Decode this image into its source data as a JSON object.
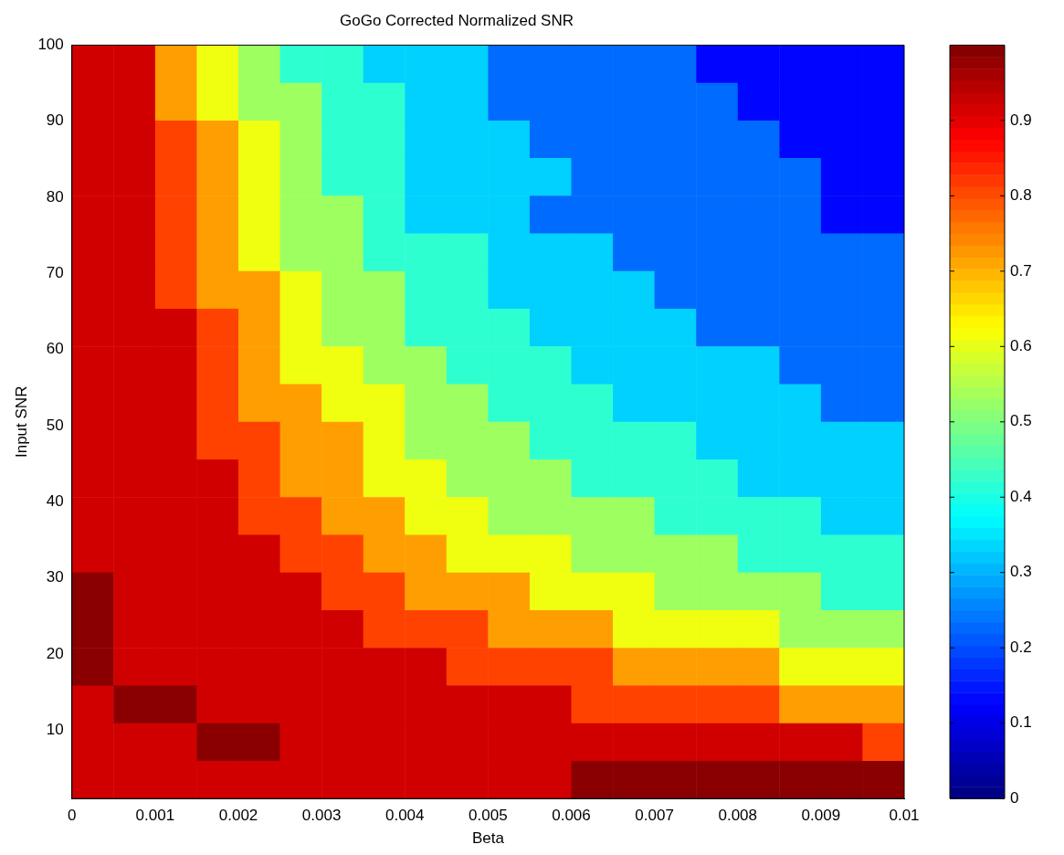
{
  "chart_data": {
    "type": "heatmap",
    "title": "GoGo Corrected Normalized SNR",
    "xlabel": "Beta",
    "ylabel": "Input SNR",
    "x": [
      0.00025,
      0.00075,
      0.00125,
      0.00175,
      0.00225,
      0.00275,
      0.00325,
      0.00375,
      0.00425,
      0.00475,
      0.00525,
      0.00575,
      0.00625,
      0.00675,
      0.00725,
      0.00775,
      0.00825,
      0.00875,
      0.00925,
      0.00975
    ],
    "y": [
      97.5,
      92.6,
      87.6,
      82.7,
      77.7,
      72.8,
      67.8,
      62.9,
      57.9,
      53.0,
      48.0,
      43.1,
      38.1,
      33.2,
      28.2,
      23.3,
      18.3,
      13.4,
      8.4,
      3.5
    ],
    "xlim": [
      0,
      0.01
    ],
    "xticks": [
      0,
      0.001,
      0.002,
      0.003,
      0.004,
      0.005,
      0.006,
      0.007,
      0.008,
      0.009,
      0.01
    ],
    "ylim": [
      1,
      100
    ],
    "yticks": [
      10,
      20,
      30,
      40,
      50,
      60,
      70,
      80,
      90,
      100
    ],
    "clim": [
      0,
      1
    ],
    "cticks": [
      0,
      0.1,
      0.2,
      0.3,
      0.4,
      0.5,
      0.6,
      0.7,
      0.8,
      0.9
    ],
    "cells": [
      [
        0.92,
        0.92,
        0.72,
        0.61,
        0.53,
        0.42,
        0.42,
        0.33,
        0.33,
        0.33,
        0.23,
        0.23,
        0.23,
        0.23,
        0.23,
        0.13,
        0.13,
        0.13,
        0.13,
        0.13
      ],
      [
        0.92,
        0.92,
        0.72,
        0.61,
        0.53,
        0.53,
        0.42,
        0.42,
        0.33,
        0.33,
        0.23,
        0.23,
        0.23,
        0.23,
        0.23,
        0.23,
        0.13,
        0.13,
        0.13,
        0.13
      ],
      [
        0.92,
        0.92,
        0.81,
        0.72,
        0.61,
        0.53,
        0.42,
        0.42,
        0.33,
        0.33,
        0.33,
        0.23,
        0.23,
        0.23,
        0.23,
        0.23,
        0.23,
        0.13,
        0.13,
        0.13
      ],
      [
        0.92,
        0.92,
        0.81,
        0.72,
        0.61,
        0.53,
        0.42,
        0.42,
        0.33,
        0.33,
        0.33,
        0.33,
        0.23,
        0.23,
        0.23,
        0.23,
        0.23,
        0.23,
        0.13,
        0.13
      ],
      [
        0.92,
        0.92,
        0.81,
        0.72,
        0.61,
        0.53,
        0.53,
        0.42,
        0.33,
        0.33,
        0.33,
        0.23,
        0.23,
        0.23,
        0.23,
        0.23,
        0.23,
        0.23,
        0.13,
        0.13
      ],
      [
        0.92,
        0.92,
        0.81,
        0.72,
        0.61,
        0.53,
        0.53,
        0.42,
        0.42,
        0.42,
        0.33,
        0.33,
        0.33,
        0.23,
        0.23,
        0.23,
        0.23,
        0.23,
        0.23,
        0.23
      ],
      [
        0.92,
        0.92,
        0.81,
        0.72,
        0.72,
        0.61,
        0.53,
        0.53,
        0.42,
        0.42,
        0.33,
        0.33,
        0.33,
        0.33,
        0.23,
        0.23,
        0.23,
        0.23,
        0.23,
        0.23
      ],
      [
        0.92,
        0.92,
        0.92,
        0.81,
        0.72,
        0.61,
        0.53,
        0.53,
        0.42,
        0.42,
        0.42,
        0.33,
        0.33,
        0.33,
        0.33,
        0.23,
        0.23,
        0.23,
        0.23,
        0.23
      ],
      [
        0.92,
        0.92,
        0.92,
        0.81,
        0.72,
        0.61,
        0.61,
        0.53,
        0.53,
        0.42,
        0.42,
        0.42,
        0.33,
        0.33,
        0.33,
        0.33,
        0.33,
        0.23,
        0.23,
        0.23
      ],
      [
        0.92,
        0.92,
        0.92,
        0.81,
        0.72,
        0.72,
        0.61,
        0.61,
        0.53,
        0.53,
        0.42,
        0.42,
        0.42,
        0.33,
        0.33,
        0.33,
        0.33,
        0.33,
        0.23,
        0.23
      ],
      [
        0.92,
        0.92,
        0.92,
        0.81,
        0.81,
        0.72,
        0.72,
        0.61,
        0.53,
        0.53,
        0.53,
        0.42,
        0.42,
        0.42,
        0.42,
        0.33,
        0.33,
        0.33,
        0.33,
        0.33
      ],
      [
        0.92,
        0.92,
        0.92,
        0.92,
        0.81,
        0.72,
        0.72,
        0.61,
        0.61,
        0.53,
        0.53,
        0.53,
        0.42,
        0.42,
        0.42,
        0.42,
        0.33,
        0.33,
        0.33,
        0.33
      ],
      [
        0.92,
        0.92,
        0.92,
        0.92,
        0.81,
        0.81,
        0.72,
        0.72,
        0.61,
        0.61,
        0.53,
        0.53,
        0.53,
        0.53,
        0.42,
        0.42,
        0.42,
        0.42,
        0.33,
        0.33
      ],
      [
        0.92,
        0.92,
        0.92,
        0.92,
        0.92,
        0.81,
        0.81,
        0.72,
        0.72,
        0.61,
        0.61,
        0.61,
        0.53,
        0.53,
        0.53,
        0.53,
        0.42,
        0.42,
        0.42,
        0.42
      ],
      [
        0.99,
        0.92,
        0.92,
        0.92,
        0.92,
        0.92,
        0.81,
        0.81,
        0.72,
        0.72,
        0.72,
        0.61,
        0.61,
        0.61,
        0.53,
        0.53,
        0.53,
        0.53,
        0.42,
        0.42
      ],
      [
        0.99,
        0.92,
        0.92,
        0.92,
        0.92,
        0.92,
        0.92,
        0.81,
        0.81,
        0.81,
        0.72,
        0.72,
        0.72,
        0.61,
        0.61,
        0.61,
        0.61,
        0.53,
        0.53,
        0.53
      ],
      [
        0.99,
        0.92,
        0.92,
        0.92,
        0.92,
        0.92,
        0.92,
        0.92,
        0.92,
        0.81,
        0.81,
        0.81,
        0.81,
        0.72,
        0.72,
        0.72,
        0.72,
        0.61,
        0.61,
        0.61
      ],
      [
        0.92,
        0.99,
        0.99,
        0.92,
        0.92,
        0.92,
        0.92,
        0.92,
        0.92,
        0.92,
        0.92,
        0.92,
        0.81,
        0.81,
        0.81,
        0.81,
        0.81,
        0.72,
        0.72,
        0.72
      ],
      [
        0.92,
        0.92,
        0.92,
        0.99,
        0.99,
        0.92,
        0.92,
        0.92,
        0.92,
        0.92,
        0.92,
        0.92,
        0.92,
        0.92,
        0.92,
        0.92,
        0.92,
        0.92,
        0.92,
        0.81
      ],
      [
        0.92,
        0.92,
        0.92,
        0.92,
        0.92,
        0.92,
        0.92,
        0.92,
        0.92,
        0.92,
        0.92,
        0.92,
        0.99,
        0.99,
        0.99,
        0.99,
        0.99,
        0.99,
        0.99,
        0.99
      ]
    ]
  }
}
